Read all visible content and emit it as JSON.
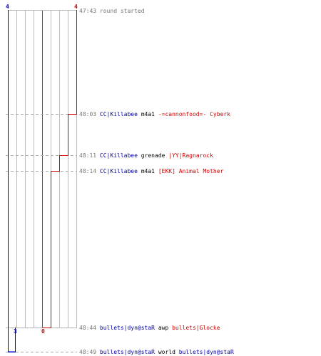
{
  "colors": {
    "team_blue": "#0000cc",
    "team_red": "#cc0000",
    "grid": "#bbbbbb",
    "dash": "#aaaaaa",
    "time_text": "#777777"
  },
  "scores": {
    "blue_start": "4",
    "red_start": "4",
    "blue_end": "3",
    "red_end": "0"
  },
  "events": [
    {
      "time": "47:43",
      "note": "round started"
    },
    {
      "time": "48:03",
      "killer": "CC|Killabee",
      "weapon": "m4a1",
      "victim": "-=cannonfood=- Cyberk",
      "killer_team": "blue",
      "victim_team": "red"
    },
    {
      "time": "48:11",
      "killer": "CC|Killabee",
      "weapon": "grenade",
      "victim": "|YY|Ragnarock",
      "killer_team": "blue",
      "victim_team": "red"
    },
    {
      "time": "48:14",
      "killer": "CC|Killabee",
      "weapon": "m4a1",
      "victim": "[EKK] Animal Mother",
      "killer_team": "blue",
      "victim_team": "red"
    },
    {
      "time": "48:44",
      "killer": "bullets|dyn@staR",
      "weapon": "awp",
      "victim": "bullets|Glocke",
      "killer_team": "blue",
      "victim_team": "red"
    },
    {
      "time": "48:49",
      "killer": "bullets|dyn@staR",
      "weapon": "world",
      "victim": "bullets|dyn@staR",
      "killer_team": "blue",
      "victim_team": "blue"
    }
  ]
}
